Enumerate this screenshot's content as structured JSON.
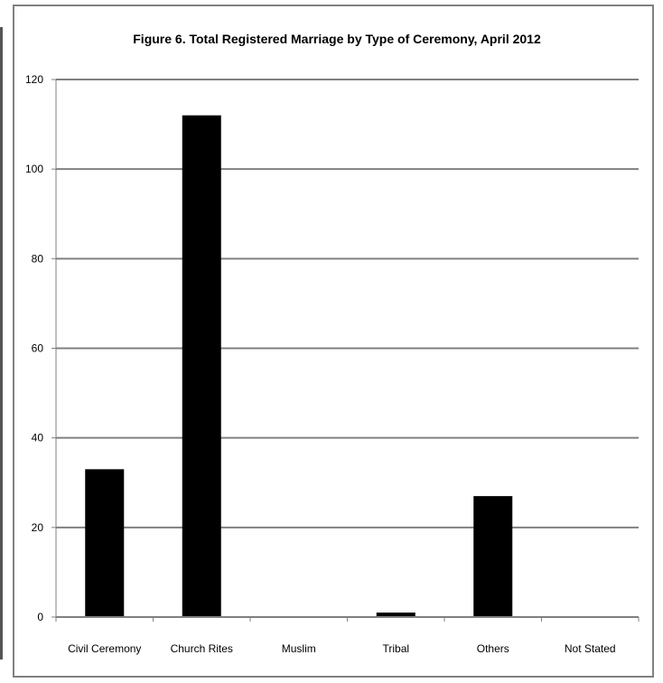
{
  "chart_data": {
    "type": "bar",
    "title": "Figure 6. Total Registered Marriage by Type of Ceremony, April 2012",
    "xlabel": "",
    "ylabel": "",
    "categories": [
      "Civil Ceremony",
      "Church Rites",
      "Muslim",
      "Tribal",
      "Others",
      "Not Stated"
    ],
    "values": [
      33,
      112,
      0,
      1,
      27,
      0
    ],
    "ylim": [
      0,
      120
    ],
    "yticks": [
      0,
      20,
      40,
      60,
      80,
      100,
      120
    ],
    "grid": true,
    "legend": "none",
    "bar_color": "#000000",
    "grid_color": "#808080"
  }
}
